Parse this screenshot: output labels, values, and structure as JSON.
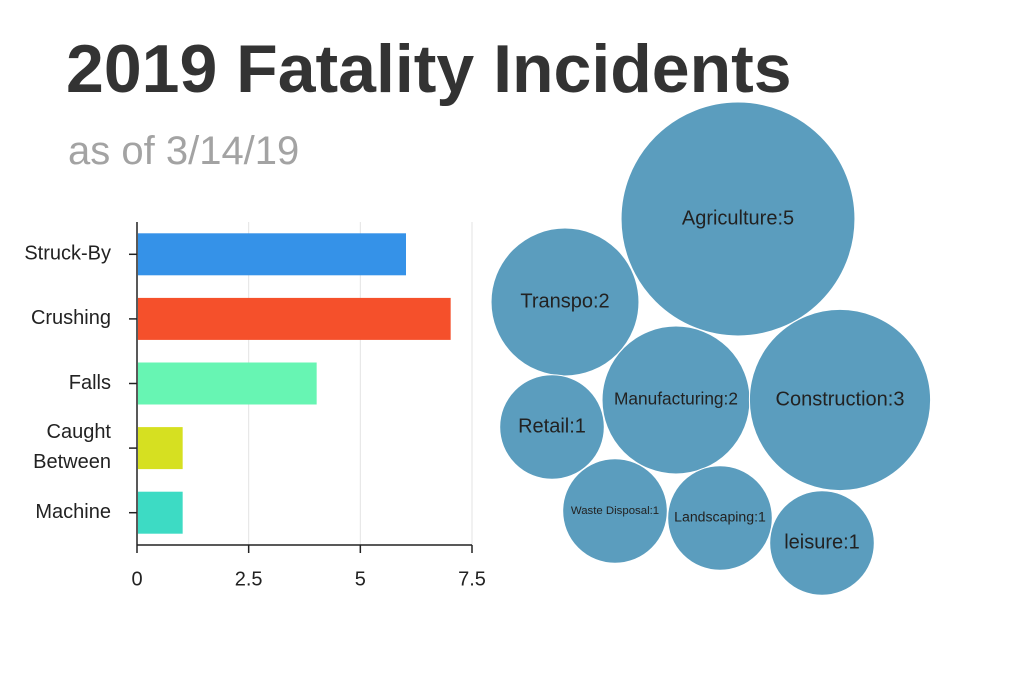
{
  "title": "2019 Fatality Incidents",
  "subtitle": "as of 3/14/19",
  "chart_data": [
    {
      "type": "hbar",
      "categories": [
        "Struck-By",
        "Crushing",
        "Falls",
        "Caught Between",
        "Machine"
      ],
      "values": [
        6,
        7,
        4,
        1,
        1
      ],
      "colors": [
        "#3592e8",
        "#f5502b",
        "#67f5b3",
        "#d6e021",
        "#3ddbc4"
      ],
      "xlim": [
        0,
        7.5
      ],
      "xticks": [
        0,
        2.5,
        5,
        7.5
      ],
      "grid": true
    },
    {
      "type": "bubble",
      "values": [
        5,
        2,
        2,
        3,
        1,
        1,
        1,
        1
      ],
      "value_labels": [
        "Agriculture:5",
        "Transpo:2",
        "Manufacturing:2",
        "Construction:3",
        "Retail:1",
        "Waste Disposal:1",
        "Landscaping:1",
        "leisure:1"
      ],
      "color": "#5b9dbe"
    }
  ]
}
